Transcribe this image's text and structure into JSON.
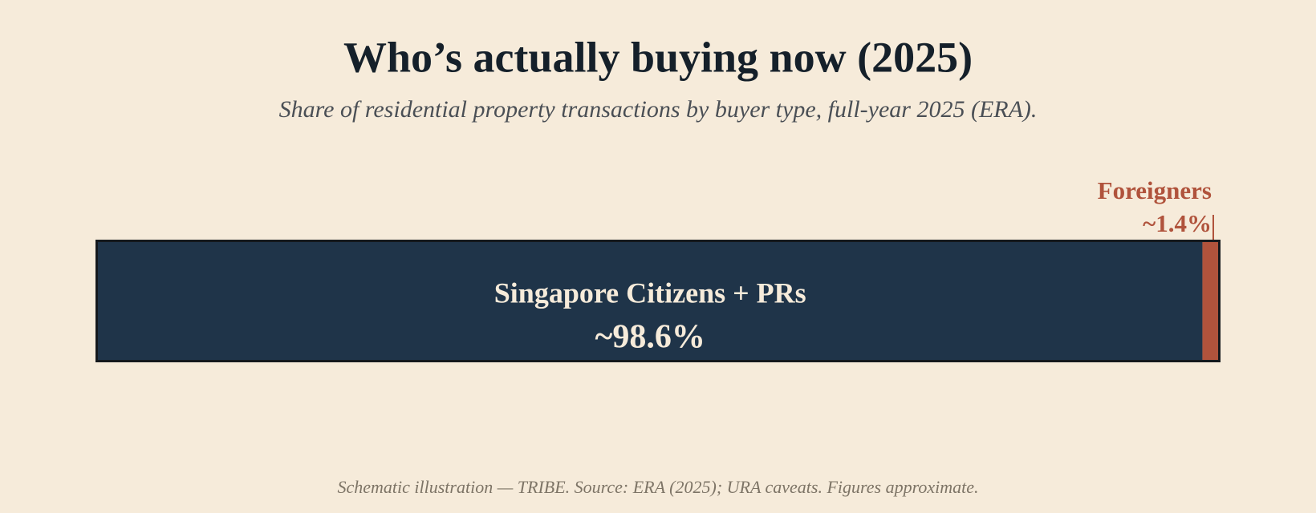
{
  "chart_data": {
    "type": "stacked-bar",
    "title": "Who’s actually buying now (2025)",
    "subtitle": "Share of residential property transactions by buyer type, full-year 2025 (ERA).",
    "xlim": [
      0,
      100
    ],
    "series": [
      {
        "name": "Singapore Citizens + PRs",
        "color": "#1f3449",
        "values": [
          98.6
        ],
        "value_labels": [
          "~98.6%"
        ]
      },
      {
        "name": "Foreigners",
        "color": "#b0533c",
        "values": [
          1.4
        ],
        "value_labels": [
          "~1.4%"
        ]
      }
    ],
    "note": "Schematic illustration — TRIBE. Source: ERA (2025); URA caveats. Figures approximate."
  }
}
